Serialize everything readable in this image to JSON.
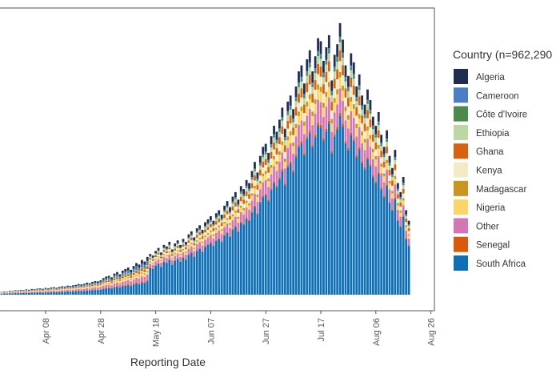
{
  "chart_data": {
    "type": "bar",
    "stacked": true,
    "title": "",
    "xlabel": "Reporting Date",
    "ylabel": "",
    "x_start_date": "Mar 22",
    "x_ticks": [
      "Apr 08",
      "Apr 28",
      "May 18",
      "Jun 07",
      "Jun 27",
      "Jul 17",
      "Aug 06",
      "Aug 26"
    ],
    "grid": false,
    "legend_placement": "right",
    "legend_title": "Country  (n=962,290",
    "daily_total": [
      150,
      180,
      220,
      200,
      260,
      240,
      300,
      280,
      320,
      300,
      350,
      330,
      380,
      360,
      400,
      420,
      390,
      450,
      420,
      480,
      500,
      460,
      520,
      560,
      540,
      600,
      580,
      620,
      650,
      700,
      680,
      720,
      800,
      760,
      850,
      900,
      880,
      950,
      1100,
      1200,
      1250,
      1150,
      1400,
      1500,
      1350,
      1600,
      1700,
      1800,
      1650,
      1900,
      2100,
      2000,
      2300,
      2200,
      2500,
      2700,
      2600,
      2900,
      3100,
      2800,
      3300,
      3200,
      3500,
      3000,
      3400,
      3600,
      3300,
      3700,
      3500,
      4000,
      4200,
      3800,
      4400,
      4600,
      4300,
      4800,
      5000,
      5200,
      4900,
      5400,
      5600,
      5300,
      5900,
      6200,
      5800,
      6500,
      6800,
      6300,
      7200,
      7000,
      7600,
      7400,
      8200,
      8800,
      8100,
      9200,
      9800,
      10000,
      9400,
      10500,
      11200,
      10800,
      11600,
      12400,
      11000,
      12800,
      13200,
      12300,
      13800,
      14800,
      15200,
      14000,
      15600,
      16200,
      14800,
      15800,
      17000,
      16800,
      15500,
      16400,
      17200,
      14200,
      15900,
      16600,
      18000,
      16900,
      15200,
      14500,
      16000,
      15400,
      13800,
      14600,
      13200,
      12600,
      13600,
      12900,
      11800,
      11200,
      12100,
      10600,
      9800,
      10900,
      9200,
      8400,
      9600,
      7400,
      6800,
      7800,
      5600,
      4900
    ],
    "ylim": [
      0,
      19000
    ],
    "series": [
      {
        "name": "Algeria",
        "color": "#1f2d4f",
        "share_before_may16": 0.1,
        "share_from_may16": 0.05
      },
      {
        "name": "Cameroon",
        "color": "#4a7fc8",
        "share_before_may16": 0.08,
        "share_from_may16": 0.01
      },
      {
        "name": "Côte d'Ivoire",
        "color": "#4a8a4a",
        "share_before_may16": 0.04,
        "share_from_may16": 0.01
      },
      {
        "name": "Ethiopia",
        "color": "#bcd6a4",
        "share_before_may16": 0.02,
        "share_from_may16": 0.03
      },
      {
        "name": "Ghana",
        "color": "#d9620e",
        "share_before_may16": 0.08,
        "share_from_may16": 0.04
      },
      {
        "name": "Kenya",
        "color": "#f3ebc6",
        "share_before_may16": 0.04,
        "share_from_may16": 0.04
      },
      {
        "name": "Madagascar",
        "color": "#c8961e",
        "share_before_may16": 0.03,
        "share_from_may16": 0.02
      },
      {
        "name": "Nigeria",
        "color": "#fdd466",
        "share_before_may16": 0.08,
        "share_from_may16": 0.04
      },
      {
        "name": "Other",
        "color": "#d277b4",
        "share_before_may16": 0.15,
        "share_from_may16": 0.09
      },
      {
        "name": "Senegal",
        "color": "#d95a0a",
        "share_before_may16": 0.03,
        "share_from_may16": 0.01
      },
      {
        "name": "South Africa",
        "color": "#0e6fb8",
        "share_before_may16": 0.35,
        "share_from_may16": 0.66
      }
    ]
  }
}
